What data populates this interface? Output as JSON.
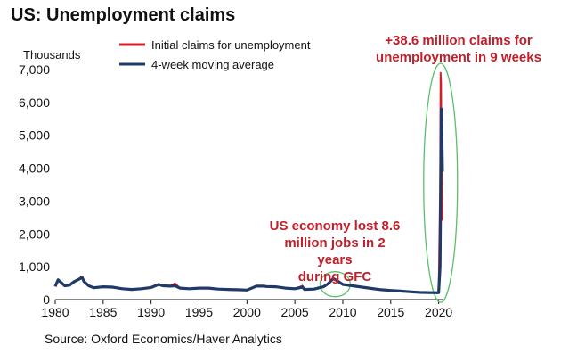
{
  "title": "US: Unemployment claims",
  "source": "Source: Oxford Economics/Haver Analytics",
  "colors": {
    "initial": "#d0212b",
    "average": "#1f3a68",
    "highlight": "#5cbf6a",
    "annotation": "#c0202a"
  },
  "chart_data": {
    "type": "line",
    "title": "US: Unemployment claims",
    "ylabel": "Thousands",
    "xlabel": "",
    "xlim": [
      1980,
      2020.5
    ],
    "ylim": [
      0,
      7000
    ],
    "x_ticks": [
      1980,
      1985,
      1990,
      1995,
      2000,
      2005,
      2010,
      2015,
      2020
    ],
    "y_ticks": [
      0,
      1000,
      2000,
      3000,
      4000,
      5000,
      6000,
      7000
    ],
    "y_tick_labels": [
      "0",
      "1,000",
      "2,000",
      "3,000",
      "4,000",
      "5,000",
      "6,000",
      "7,000"
    ],
    "grid": false,
    "legend_position": "top",
    "series": [
      {
        "name": "Initial claims for unemployment",
        "x": [
          1980,
          1980.3,
          1980.5,
          1981,
          1981.5,
          1982,
          1982.5,
          1982.8,
          1983,
          1983.5,
          1984,
          1985,
          1986,
          1987,
          1988,
          1989,
          1990,
          1990.8,
          1991,
          1991.3,
          1992,
          1992.5,
          1993,
          1994,
          1995,
          1996,
          1997,
          1998,
          1999,
          2000,
          2001,
          2001.8,
          2002,
          2003,
          2004,
          2005,
          2005.8,
          2006,
          2007,
          2008,
          2008.5,
          2009,
          2009.2,
          2010,
          2011,
          2012,
          2013,
          2014,
          2015,
          2016,
          2017,
          2018,
          2019,
          2020,
          2020.15,
          2020.2,
          2020.25,
          2020.28,
          2020.3,
          2020.35,
          2020.4
        ],
        "y": [
          400,
          620,
          560,
          420,
          440,
          560,
          640,
          700,
          560,
          420,
          360,
          390,
          380,
          330,
          310,
          330,
          370,
          480,
          450,
          430,
          420,
          490,
          350,
          330,
          350,
          350,
          320,
          310,
          300,
          290,
          420,
          420,
          410,
          400,
          350,
          330,
          420,
          310,
          320,
          400,
          500,
          650,
          620,
          460,
          420,
          380,
          340,
          300,
          280,
          260,
          240,
          220,
          215,
          210,
          3300,
          6900,
          6600,
          5200,
          4400,
          3200,
          2400
        ]
      },
      {
        "name": "4-week moving average",
        "x": [
          1980,
          1980.3,
          1980.5,
          1981,
          1981.5,
          1982,
          1982.5,
          1982.8,
          1983,
          1983.5,
          1984,
          1985,
          1986,
          1987,
          1988,
          1989,
          1990,
          1990.8,
          1991,
          1991.3,
          1992,
          1992.5,
          1993,
          1994,
          1995,
          1996,
          1997,
          1998,
          1999,
          2000,
          2001,
          2001.8,
          2002,
          2003,
          2004,
          2005,
          2005.8,
          2006,
          2007,
          2008,
          2008.5,
          2009,
          2009.2,
          2010,
          2011,
          2012,
          2013,
          2014,
          2015,
          2016,
          2017,
          2018,
          2019,
          2020,
          2020.15,
          2020.2,
          2020.25,
          2020.28,
          2020.3,
          2020.35,
          2020.4
        ],
        "y": [
          400,
          600,
          550,
          420,
          440,
          550,
          620,
          680,
          550,
          420,
          360,
          390,
          380,
          330,
          310,
          330,
          370,
          460,
          440,
          420,
          410,
          420,
          350,
          330,
          350,
          350,
          320,
          310,
          300,
          290,
          410,
          410,
          400,
          390,
          350,
          330,
          380,
          310,
          320,
          390,
          490,
          640,
          610,
          460,
          420,
          380,
          340,
          300,
          280,
          260,
          240,
          220,
          215,
          210,
          1000,
          3000,
          4800,
          5800,
          5700,
          4800,
          3900
        ]
      }
    ],
    "annotations": [
      {
        "text": "+38.6 million claims for unemployment in 9 weeks",
        "lines": [
          "+38.6 million claims for",
          "unemployment in 9 weeks"
        ],
        "x": 2020.2,
        "y": 6900
      },
      {
        "text": "US economy lost 8.6 million jobs in 2 years during GFC",
        "lines": [
          "US economy lost 8.6",
          "million jobs in 2 years",
          "during GFC"
        ],
        "x": 2009.2,
        "y": 650
      }
    ]
  }
}
